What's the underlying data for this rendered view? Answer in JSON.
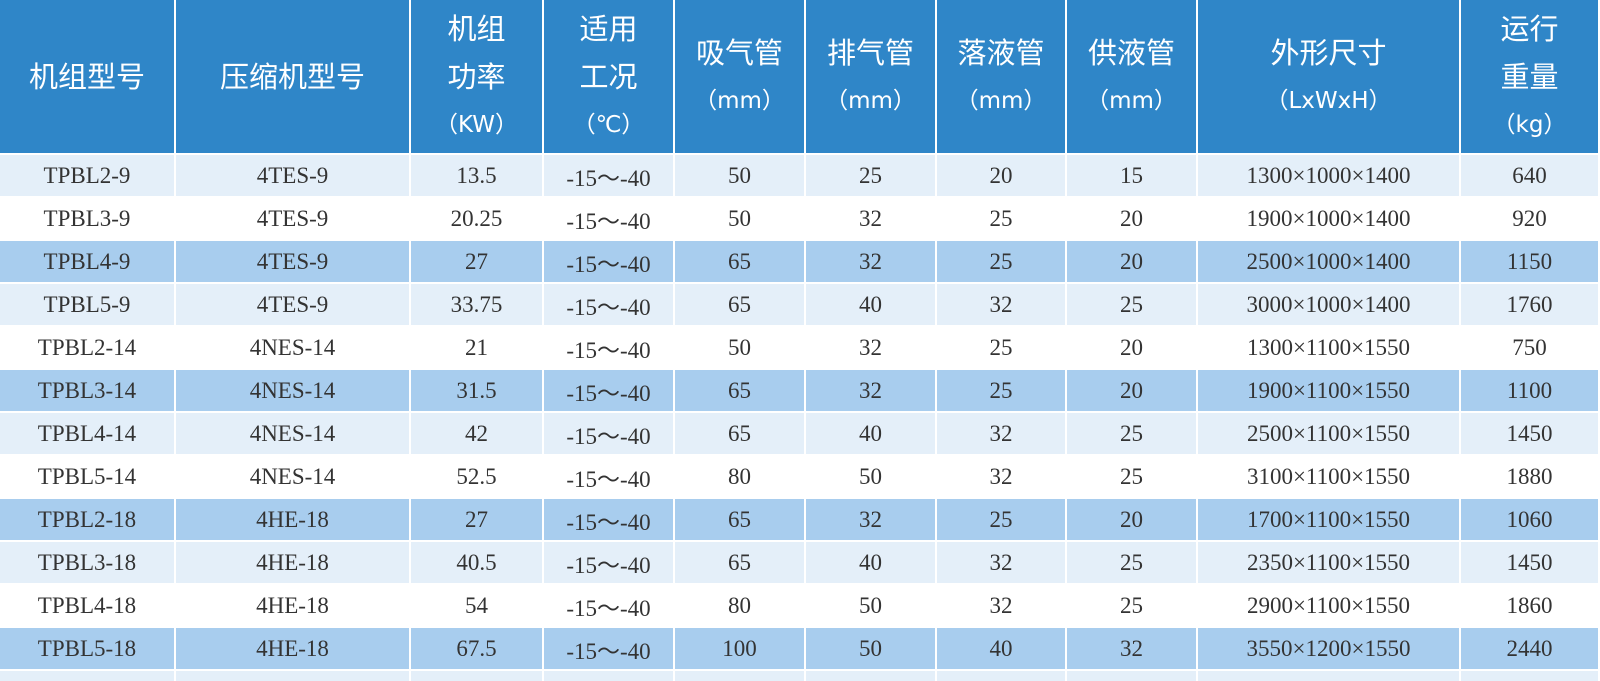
{
  "table": {
    "header": [
      [
        "机组型号"
      ],
      [
        "压缩机型号"
      ],
      [
        "机组",
        "功率",
        "（KW）"
      ],
      [
        "适用",
        "工况",
        "（℃）"
      ],
      [
        "吸气管",
        "（mm）"
      ],
      [
        "排气管",
        "（mm）"
      ],
      [
        "落液管",
        "（mm）"
      ],
      [
        "供液管",
        "（mm）"
      ],
      [
        "外形尺寸",
        "（LxWxH）"
      ],
      [
        "运行",
        "重量",
        "（kg）"
      ]
    ],
    "rows": [
      [
        "TPBL2-9",
        "4TES-9",
        "13.5",
        "-15～-40",
        "50",
        "25",
        "20",
        "15",
        "1300×1000×1400",
        "640"
      ],
      [
        "TPBL3-9",
        "4TES-9",
        "20.25",
        "-15～-40",
        "50",
        "32",
        "25",
        "20",
        "1900×1000×1400",
        "920"
      ],
      [
        "TPBL4-9",
        "4TES-9",
        "27",
        "-15～-40",
        "65",
        "32",
        "25",
        "20",
        "2500×1000×1400",
        "1150"
      ],
      [
        "TPBL5-9",
        "4TES-9",
        "33.75",
        "-15～-40",
        "65",
        "40",
        "32",
        "25",
        "3000×1000×1400",
        "1760"
      ],
      [
        "TPBL2-14",
        "4NES-14",
        "21",
        "-15～-40",
        "50",
        "32",
        "25",
        "20",
        "1300×1100×1550",
        "750"
      ],
      [
        "TPBL3-14",
        "4NES-14",
        "31.5",
        "-15～-40",
        "65",
        "32",
        "25",
        "20",
        "1900×1100×1550",
        "1100"
      ],
      [
        "TPBL4-14",
        "4NES-14",
        "42",
        "-15～-40",
        "65",
        "40",
        "32",
        "25",
        "2500×1100×1550",
        "1450"
      ],
      [
        "TPBL5-14",
        "4NES-14",
        "52.5",
        "-15～-40",
        "80",
        "50",
        "32",
        "25",
        "3100×1100×1550",
        "1880"
      ],
      [
        "TPBL2-18",
        "4HE-18",
        "27",
        "-15～-40",
        "65",
        "32",
        "25",
        "20",
        "1700×1100×1550",
        "1060"
      ],
      [
        "TPBL3-18",
        "4HE-18",
        "40.5",
        "-15～-40",
        "65",
        "40",
        "32",
        "25",
        "2350×1100×1550",
        "1450"
      ],
      [
        "TPBL4-18",
        "4HE-18",
        "54",
        "-15～-40",
        "80",
        "50",
        "32",
        "25",
        "2900×1100×1550",
        "1860"
      ],
      [
        "TPBL5-18",
        "4HE-18",
        "67.5",
        "-15～-40",
        "100",
        "50",
        "40",
        "32",
        "3550×1200×1550",
        "2440"
      ]
    ]
  }
}
